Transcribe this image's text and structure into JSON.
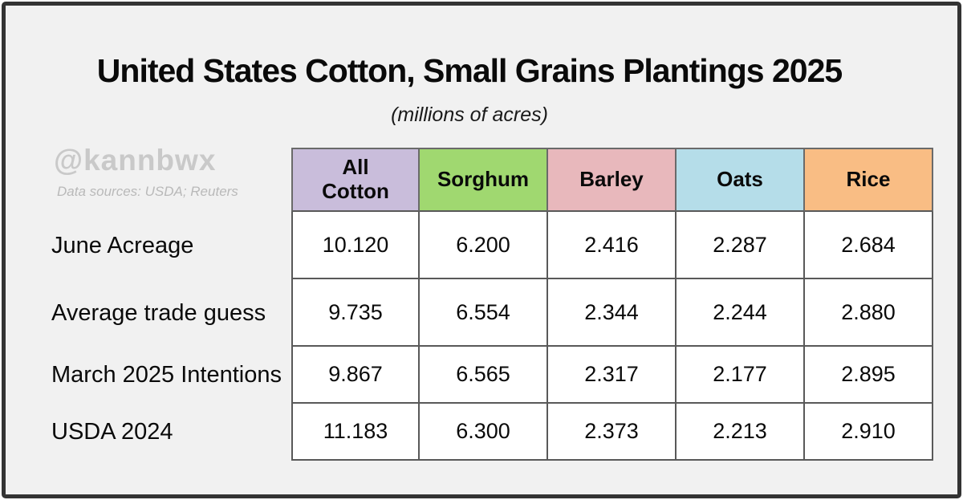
{
  "title": "United States Cotton, Small Grains Plantings 2025",
  "subtitle": "(millions of acres)",
  "watermark": {
    "handle": "@kannbwx",
    "sources": "Data sources: USDA; Reuters"
  },
  "chart_data": {
    "type": "table",
    "title": "United States Cotton, Small Grains Plantings 2025",
    "subtitle": "(millions of acres)",
    "units": "millions of acres",
    "columns": [
      {
        "label": "All Cotton",
        "color": "#c9bddb"
      },
      {
        "label": "Sorghum",
        "color": "#a0d870"
      },
      {
        "label": "Barley",
        "color": "#e8b8bc"
      },
      {
        "label": "Oats",
        "color": "#b5dde9"
      },
      {
        "label": "Rice",
        "color": "#f9bd84"
      }
    ],
    "rows": [
      {
        "label": "June Acreage",
        "values": [
          "10.120",
          "6.200",
          "2.416",
          "2.287",
          "2.684"
        ]
      },
      {
        "label": "Average trade guess",
        "values": [
          "9.735",
          "6.554",
          "2.344",
          "2.244",
          "2.880"
        ]
      },
      {
        "label": "March 2025 Intentions",
        "values": [
          "9.867",
          "6.565",
          "2.317",
          "2.177",
          "2.895"
        ]
      },
      {
        "label": "USDA 2024",
        "values": [
          "11.183",
          "6.300",
          "2.373",
          "2.213",
          "2.910"
        ]
      }
    ]
  }
}
